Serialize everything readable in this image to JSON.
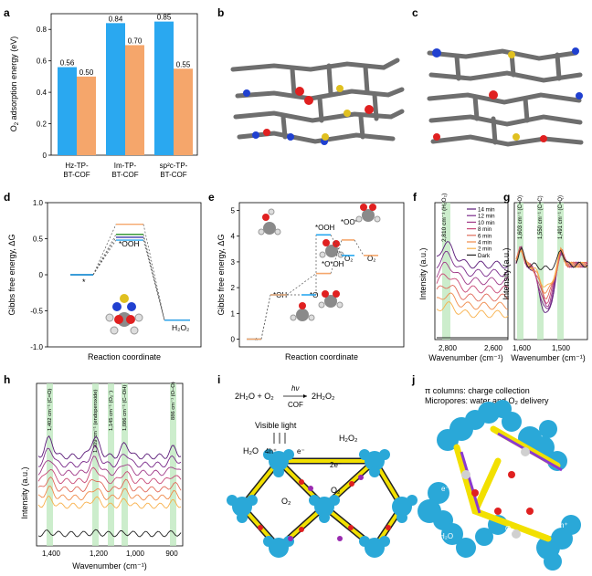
{
  "panel_letters": [
    "a",
    "b",
    "c",
    "d",
    "e",
    "f",
    "g",
    "h",
    "i",
    "j"
  ],
  "chart_data": [
    {
      "panel": "a",
      "type": "bar",
      "ylabel": "O2 adsorption energy (eV)",
      "ylim": [
        0,
        0.9
      ],
      "yticks": [
        "0",
        "0.2",
        "0.4",
        "0.6",
        "0.8"
      ],
      "categories": [
        "Hz-TP-BT-COF",
        "Im-TP-BT-COF",
        "sp2c-TP-BT-COF"
      ],
      "category_lines": [
        [
          "Hz-TP-",
          "BT-COF"
        ],
        [
          "Im-TP-",
          "BT-COF"
        ],
        [
          "sp²c-TP-",
          "BT-COF"
        ]
      ],
      "series": [
        {
          "color": "#2aa8f0",
          "values": [
            0.56,
            0.84,
            0.85
          ],
          "labels": [
            "0.56",
            "0.84",
            "0.85"
          ]
        },
        {
          "color": "#f5a66b",
          "values": [
            0.5,
            0.7,
            0.55
          ],
          "labels": [
            "0.50",
            "0.70",
            "0.55"
          ]
        }
      ]
    },
    {
      "panel": "d",
      "type": "line",
      "ylabel": "Gibbs free energy, ΔG",
      "xlabel": "Reaction coordinate",
      "ylim": [
        -1.0,
        1.0
      ],
      "yticks": [
        "1.0",
        "0.5",
        "0",
        "-0.5",
        "-1.0"
      ],
      "steps": [
        "*",
        "*OOH",
        "H2O2"
      ],
      "series": [
        {
          "color": "#f5a66b",
          "values": [
            0,
            0.7,
            -0.63
          ]
        },
        {
          "color": "#3a9a3a",
          "values": [
            0,
            0.56,
            -0.63
          ]
        },
        {
          "color": "#3a3aa8",
          "values": [
            0,
            0.52,
            -0.63
          ]
        },
        {
          "color": "#2aa8f0",
          "values": [
            0,
            0.48,
            -0.63
          ]
        }
      ],
      "annotations": [
        "*",
        "*OOH",
        "H₂O₂"
      ]
    },
    {
      "panel": "e",
      "type": "line",
      "ylabel": "Gibbs free energy, ΔG",
      "xlabel": "Reaction coordinate",
      "ylim": [
        -0.3,
        5.3
      ],
      "yticks": [
        "0",
        "1",
        "2",
        "3",
        "4",
        "5"
      ],
      "blue": [
        0,
        1.72,
        1.72,
        4.05,
        3.25
      ],
      "orange": [
        0,
        1.72,
        2.55,
        3.85,
        3.25
      ],
      "annotations": [
        "*",
        "*OH",
        "*O",
        "*O*OH",
        "*OOH",
        "*OO*",
        "O₂",
        "O₂"
      ]
    },
    {
      "panel": "f",
      "type": "line",
      "ylabel": "Intensity (a.u.)",
      "xlabel": "Wavenumber (cm⁻¹)",
      "xticks": [
        "2,800",
        "2,600"
      ],
      "annotation": "2,810 cm⁻¹ (H₂O₂)",
      "legend": [
        "14 min",
        "12 min",
        "10 min",
        "8 min",
        "6 min",
        "4 min",
        "2 min",
        "Dark"
      ],
      "colors": [
        "#5a1a78",
        "#7a2a8a",
        "#a03a88",
        "#c84a78",
        "#e06a5a",
        "#f08a4a",
        "#f8b04a",
        "#222222"
      ]
    },
    {
      "panel": "g",
      "type": "line",
      "ylabel": "Intensity (a.u.)",
      "xlabel": "Wavenumber (cm⁻¹)",
      "xticks": [
        "1,600",
        "1,500"
      ],
      "annotations": [
        "1,603 cm⁻¹ (C=O)",
        "1,550 cm⁻¹ (C=C)",
        "1,491 cm⁻¹ (C=Q)"
      ]
    },
    {
      "panel": "h",
      "type": "line",
      "ylabel": "Intensity (a.u.)",
      "xlabel": "Wavenumber (cm⁻¹)",
      "xticks": [
        "1,400",
        "1,200",
        "1,000",
        "900"
      ],
      "annotations": [
        "1,402 cm⁻¹ (C=O)",
        "1,209 cm⁻¹ (endoperoxide)",
        "1,145 cm⁻¹ (O₂⁻)",
        "1,086 cm⁻¹ (C–OH)",
        "886 cm⁻¹ (O–O)"
      ]
    }
  ],
  "panel_i": {
    "reaction_left": "2H₂O + O₂",
    "reaction_catalyst": "COF",
    "reaction_light": "hν",
    "reaction_right": "2H₂O₂",
    "visible_light": "Visible light",
    "labels": [
      "H₂O",
      "4h⁺",
      "e⁻",
      "2e⁻",
      "H₂O₂",
      "O₂",
      "O₂"
    ]
  },
  "panel_j": {
    "line1": "π columns: charge collection",
    "line2": "Micropores: water and O₂ delivery",
    "labels": [
      "H₂O",
      "O₂",
      "e⁻",
      "e⁻",
      "h⁺",
      "h⁺",
      "H₂O",
      "O₂"
    ]
  }
}
